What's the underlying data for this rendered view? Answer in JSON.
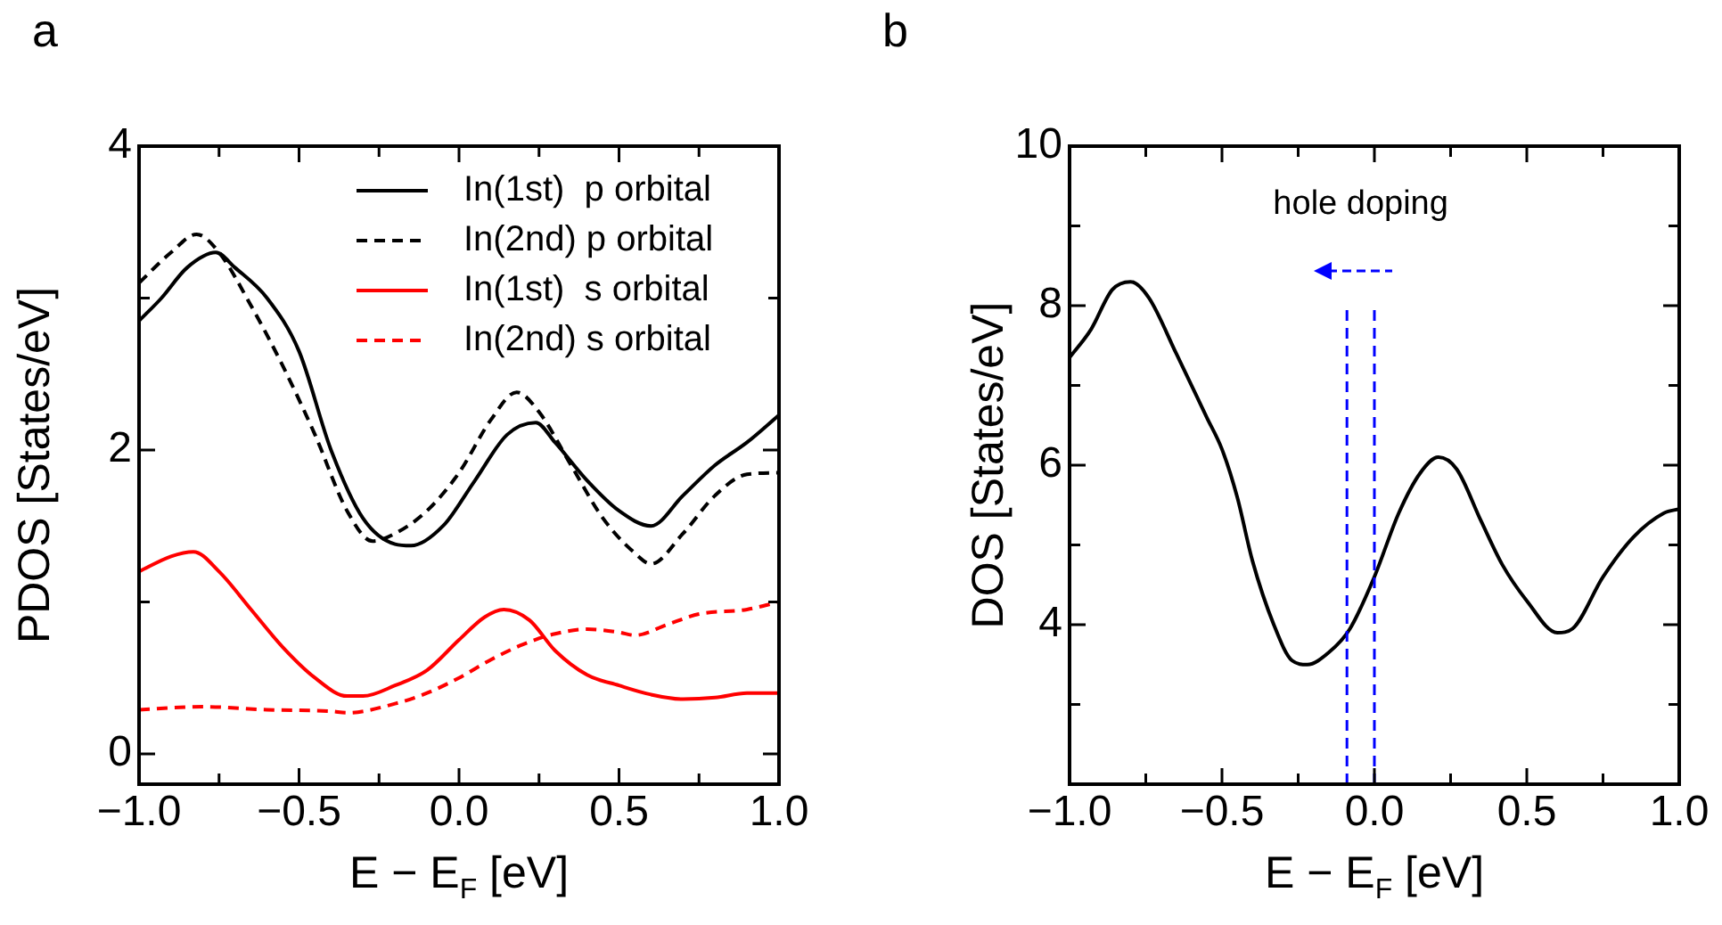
{
  "chart_data": [
    {
      "type": "line",
      "title": "a",
      "xlabel": "E − E$_{F}$ [eV]",
      "ylabel": "PDOS [States/eV]",
      "xlim": [
        -1,
        1
      ],
      "xticks": [
        {
          "value": -1,
          "label": "−1.0"
        },
        {
          "value": -0.75,
          "label": null
        },
        {
          "value": -0.5,
          "label": "−0.5"
        },
        {
          "value": -0.25,
          "label": null
        },
        {
          "value": 0,
          "label": "0.0"
        },
        {
          "value": 0.25,
          "label": null
        },
        {
          "value": 0.5,
          "label": "0.5"
        },
        {
          "value": 0.75,
          "label": null
        },
        {
          "value": 1,
          "label": "1.0"
        }
      ],
      "ylim": [
        -0.2,
        4
      ],
      "yticks": [
        0,
        {
          "value": 1,
          "label": null
        },
        2,
        {
          "value": 3,
          "label": null
        },
        4
      ],
      "legend": "top right",
      "marker": "none",
      "series": [
        {
          "name": "In(1st)  p orbital",
          "color": "#000000",
          "line_style": "solid",
          "x": [
            -1,
            -0.93,
            -0.85,
            -0.76,
            -0.7,
            -0.6,
            -0.5,
            -0.4,
            -0.3,
            -0.2,
            -0.15,
            -0.05,
            0.05,
            0.15,
            0.24,
            0.3,
            0.4,
            0.5,
            0.6,
            0.7,
            0.8,
            0.9,
            1.0
          ],
          "values": [
            2.85,
            3.0,
            3.2,
            3.3,
            3.2,
            3.0,
            2.65,
            2.0,
            1.55,
            1.38,
            1.37,
            1.5,
            1.8,
            2.1,
            2.18,
            2.05,
            1.8,
            1.6,
            1.5,
            1.7,
            1.9,
            2.05,
            2.23
          ]
        },
        {
          "name": "In(2nd) p orbital",
          "color": "#000000",
          "line_style": "dashed",
          "x": [
            -1,
            -0.9,
            -0.82,
            -0.75,
            -0.65,
            -0.55,
            -0.45,
            -0.35,
            -0.27,
            -0.2,
            -0.1,
            0,
            0.1,
            0.18,
            0.25,
            0.35,
            0.45,
            0.55,
            0.6,
            0.7,
            0.8,
            0.9,
            1.0
          ],
          "values": [
            3.1,
            3.3,
            3.42,
            3.3,
            2.95,
            2.55,
            2.1,
            1.6,
            1.4,
            1.45,
            1.6,
            1.85,
            2.2,
            2.38,
            2.25,
            1.9,
            1.55,
            1.32,
            1.25,
            1.45,
            1.7,
            1.84,
            1.85
          ]
        },
        {
          "name": "In(1st)  s orbital",
          "color": "#ff0000",
          "line_style": "solid",
          "x": [
            -1,
            -0.9,
            -0.83,
            -0.75,
            -0.65,
            -0.55,
            -0.45,
            -0.35,
            -0.3,
            -0.2,
            -0.1,
            0,
            0.08,
            0.14,
            0.22,
            0.3,
            0.4,
            0.5,
            0.6,
            0.7,
            0.8,
            0.9,
            1.0
          ],
          "values": [
            1.2,
            1.3,
            1.33,
            1.2,
            0.95,
            0.7,
            0.5,
            0.38,
            0.38,
            0.45,
            0.55,
            0.75,
            0.9,
            0.95,
            0.88,
            0.68,
            0.52,
            0.45,
            0.39,
            0.36,
            0.37,
            0.4,
            0.4
          ]
        },
        {
          "name": "In(2nd) s orbital",
          "color": "#ff0000",
          "line_style": "dashed",
          "x": [
            -1,
            -0.8,
            -0.6,
            -0.4,
            -0.35,
            -0.2,
            -0.1,
            0,
            0.1,
            0.2,
            0.3,
            0.4,
            0.5,
            0.55,
            0.65,
            0.75,
            0.9,
            1.0
          ],
          "values": [
            0.29,
            0.31,
            0.29,
            0.28,
            0.27,
            0.33,
            0.4,
            0.5,
            0.62,
            0.72,
            0.79,
            0.82,
            0.8,
            0.78,
            0.85,
            0.92,
            0.95,
            1.0
          ]
        }
      ]
    },
    {
      "type": "line",
      "title": "b",
      "xlabel": "E − E$_{F}$ [eV]",
      "ylabel": "DOS [States/eV]",
      "xlim": [
        -1,
        1
      ],
      "xticks": [
        {
          "value": -1,
          "label": "−1.0"
        },
        {
          "value": -0.75,
          "label": null
        },
        {
          "value": -0.5,
          "label": "−0.5"
        },
        {
          "value": -0.25,
          "label": null
        },
        {
          "value": 0,
          "label": "0.0"
        },
        {
          "value": 0.25,
          "label": null
        },
        {
          "value": 0.5,
          "label": "0.5"
        },
        {
          "value": 0.75,
          "label": null
        },
        {
          "value": 1,
          "label": "1.0"
        }
      ],
      "ylim": [
        2,
        10
      ],
      "yticks": [
        {
          "value": 3,
          "label": null
        },
        4,
        {
          "value": 5,
          "label": null
        },
        6,
        {
          "value": 7,
          "label": null
        },
        8,
        {
          "value": 9,
          "label": null
        },
        10
      ],
      "marker": "none",
      "annotations": [
        "hole doping"
      ],
      "ref_lines": [
        {
          "axis": "x",
          "value": -0.09,
          "color": "#0000ff",
          "line_style": "dashed"
        },
        {
          "axis": "x",
          "value": 0,
          "color": "#0000ff",
          "line_style": "dashed"
        }
      ],
      "series": [
        {
          "color": "#000000",
          "line_style": "solid",
          "x": [
            -1,
            -0.93,
            -0.86,
            -0.8,
            -0.74,
            -0.65,
            -0.55,
            -0.5,
            -0.45,
            -0.4,
            -0.33,
            -0.27,
            -0.22,
            -0.15,
            -0.08,
            0,
            0.08,
            0.15,
            0.21,
            0.27,
            0.35,
            0.42,
            0.5,
            0.6,
            0.65,
            0.75,
            0.85,
            0.95,
            1.0
          ],
          "values": [
            7.35,
            7.7,
            8.2,
            8.3,
            8.1,
            7.4,
            6.6,
            6.2,
            5.6,
            4.8,
            4.0,
            3.55,
            3.5,
            3.65,
            3.95,
            4.6,
            5.4,
            5.9,
            6.1,
            5.95,
            5.3,
            4.75,
            4.3,
            3.9,
            3.95,
            4.6,
            5.1,
            5.4,
            5.45
          ]
        }
      ]
    }
  ]
}
